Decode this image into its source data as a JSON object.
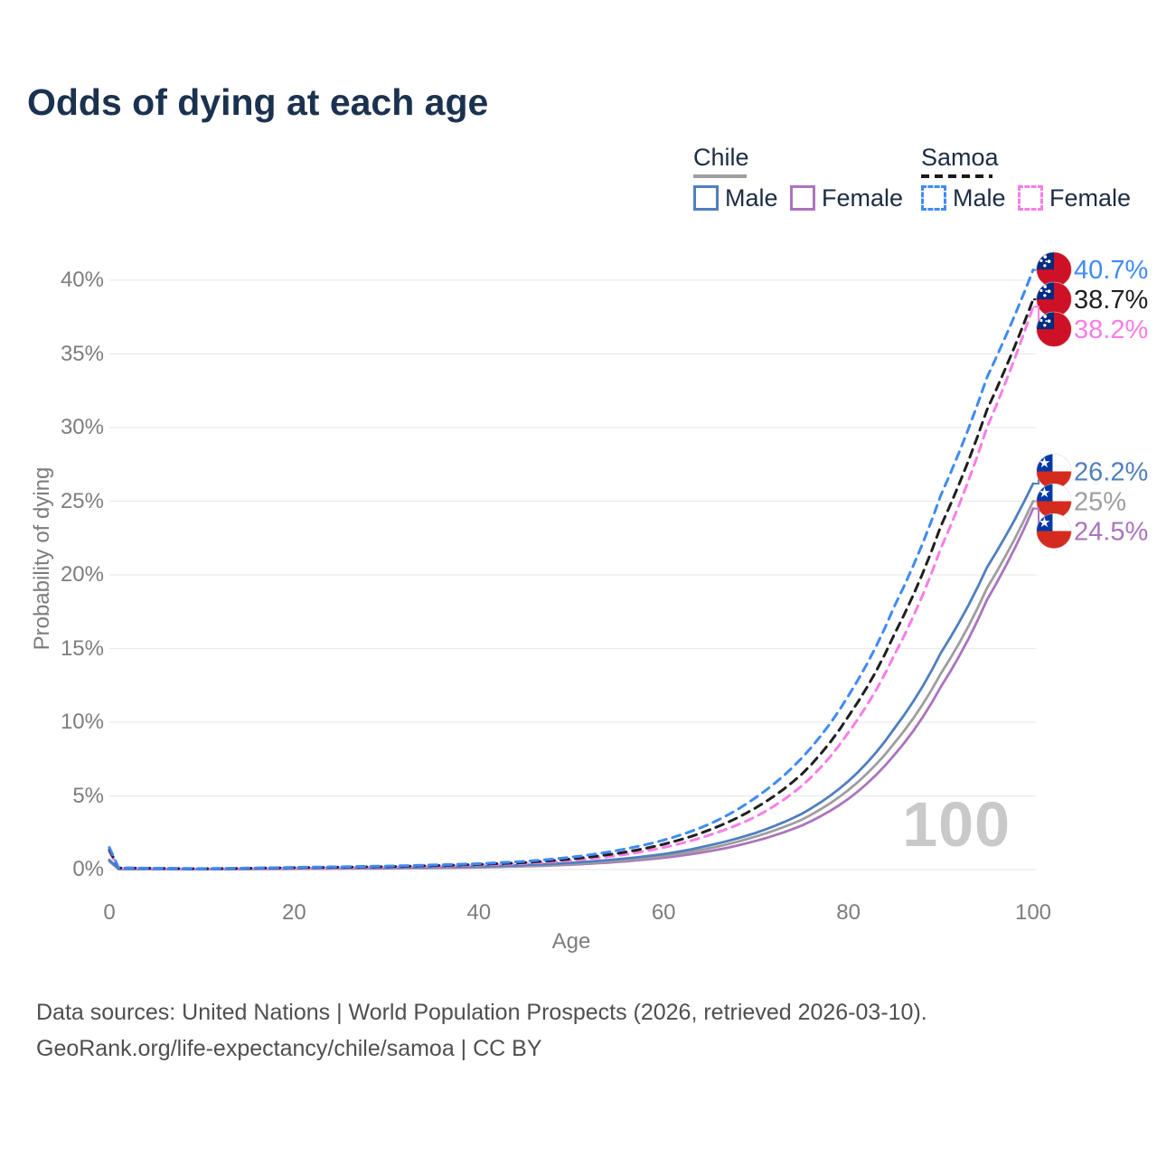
{
  "page": {
    "title": "Odds of dying at each age"
  },
  "legend": {
    "groups": [
      {
        "label": "Chile",
        "underline_color": "#9e9e9e",
        "underline_dash": false,
        "items": [
          {
            "label": "Male",
            "color": "#4f7fbe",
            "dash": false
          },
          {
            "label": "Female",
            "color": "#ab74bd",
            "dash": false
          }
        ]
      },
      {
        "label": "Samoa",
        "underline_color": "#1a1a1a",
        "underline_dash": true,
        "items": [
          {
            "label": "Male",
            "color": "#3f8af5",
            "dash": true
          },
          {
            "label": "Female",
            "color": "#fa7de7",
            "dash": true
          }
        ]
      }
    ]
  },
  "chart_data": {
    "type": "line",
    "title": "Odds of dying at each age",
    "xlabel": "Age",
    "ylabel": "Probability of dying",
    "xlim": [
      0,
      100
    ],
    "ylim": [
      0,
      42
    ],
    "grid": "horizontal",
    "legend_position": "top-right",
    "watermark": "100",
    "x_ticks": [
      {
        "label": "0",
        "v": 0
      },
      {
        "label": "20",
        "v": 20
      },
      {
        "label": "40",
        "v": 40
      },
      {
        "label": "60",
        "v": 60
      },
      {
        "label": "80",
        "v": 80
      },
      {
        "label": "100",
        "v": 100
      }
    ],
    "y_ticks": [
      {
        "label": "0%",
        "v": 0
      },
      {
        "label": "5%",
        "v": 5
      },
      {
        "label": "10%",
        "v": 10
      },
      {
        "label": "15%",
        "v": 15
      },
      {
        "label": "20%",
        "v": 20
      },
      {
        "label": "25%",
        "v": 25
      },
      {
        "label": "30%",
        "v": 30
      },
      {
        "label": "35%",
        "v": 35
      },
      {
        "label": "40%",
        "v": 40
      }
    ],
    "series": [
      {
        "id": "chile-female",
        "country": "Chile",
        "sex": "Female",
        "color": "#ab74bd",
        "dash": false,
        "end_label": "24.5%",
        "flag": "chile",
        "points": [
          [
            0,
            0.55
          ],
          [
            1,
            0.04
          ],
          [
            10,
            0.02
          ],
          [
            20,
            0.05
          ],
          [
            30,
            0.08
          ],
          [
            40,
            0.15
          ],
          [
            45,
            0.22
          ],
          [
            50,
            0.33
          ],
          [
            55,
            0.52
          ],
          [
            60,
            0.8
          ],
          [
            65,
            1.25
          ],
          [
            70,
            1.95
          ],
          [
            75,
            3.0
          ],
          [
            80,
            4.8
          ],
          [
            85,
            7.8
          ],
          [
            90,
            12.4
          ],
          [
            95,
            18.3
          ],
          [
            100,
            24.5
          ]
        ]
      },
      {
        "id": "chile-both",
        "country": "Chile",
        "sex": "Both sexes",
        "color": "#9e9e9e",
        "dash": false,
        "end_label": "25%",
        "flag": "chile",
        "points": [
          [
            0,
            0.6
          ],
          [
            1,
            0.045
          ],
          [
            10,
            0.025
          ],
          [
            20,
            0.07
          ],
          [
            30,
            0.1
          ],
          [
            40,
            0.18
          ],
          [
            45,
            0.26
          ],
          [
            50,
            0.39
          ],
          [
            55,
            0.6
          ],
          [
            60,
            0.92
          ],
          [
            65,
            1.45
          ],
          [
            70,
            2.25
          ],
          [
            75,
            3.4
          ],
          [
            80,
            5.4
          ],
          [
            85,
            8.6
          ],
          [
            90,
            13.3
          ],
          [
            95,
            19.1
          ],
          [
            100,
            25.0
          ]
        ]
      },
      {
        "id": "chile-male",
        "country": "Chile",
        "sex": "Male",
        "color": "#4f7fbe",
        "dash": false,
        "end_label": "26.2%",
        "flag": "chile",
        "points": [
          [
            0,
            0.65
          ],
          [
            1,
            0.05
          ],
          [
            10,
            0.03
          ],
          [
            20,
            0.09
          ],
          [
            30,
            0.13
          ],
          [
            40,
            0.22
          ],
          [
            45,
            0.31
          ],
          [
            50,
            0.46
          ],
          [
            55,
            0.7
          ],
          [
            60,
            1.05
          ],
          [
            65,
            1.65
          ],
          [
            70,
            2.5
          ],
          [
            75,
            3.8
          ],
          [
            80,
            6.0
          ],
          [
            85,
            9.6
          ],
          [
            90,
            14.7
          ],
          [
            95,
            20.5
          ],
          [
            100,
            26.2
          ]
        ]
      },
      {
        "id": "samoa-female",
        "country": "Samoa",
        "sex": "Female",
        "color": "#fa7de7",
        "dash": true,
        "end_label": "38.2%",
        "flag": "samoa",
        "points": [
          [
            0,
            1.2
          ],
          [
            1,
            0.1
          ],
          [
            10,
            0.05
          ],
          [
            20,
            0.1
          ],
          [
            30,
            0.17
          ],
          [
            40,
            0.3
          ],
          [
            45,
            0.42
          ],
          [
            50,
            0.62
          ],
          [
            55,
            0.95
          ],
          [
            60,
            1.5
          ],
          [
            65,
            2.35
          ],
          [
            70,
            3.6
          ],
          [
            75,
            5.7
          ],
          [
            80,
            9.3
          ],
          [
            85,
            14.6
          ],
          [
            90,
            21.8
          ],
          [
            95,
            30.0
          ],
          [
            100,
            38.2
          ]
        ]
      },
      {
        "id": "samoa-both",
        "country": "Samoa",
        "sex": "Both sexes",
        "color": "#1f1f1f",
        "dash": true,
        "end_label": "38.7%",
        "flag": "samoa",
        "points": [
          [
            0,
            1.35
          ],
          [
            1,
            0.11
          ],
          [
            10,
            0.06
          ],
          [
            20,
            0.13
          ],
          [
            30,
            0.2
          ],
          [
            40,
            0.35
          ],
          [
            45,
            0.48
          ],
          [
            50,
            0.72
          ],
          [
            55,
            1.1
          ],
          [
            60,
            1.72
          ],
          [
            65,
            2.7
          ],
          [
            70,
            4.2
          ],
          [
            75,
            6.5
          ],
          [
            80,
            10.4
          ],
          [
            85,
            16.0
          ],
          [
            90,
            23.3
          ],
          [
            95,
            31.2
          ],
          [
            100,
            38.7
          ]
        ]
      },
      {
        "id": "samoa-male",
        "country": "Samoa",
        "sex": "Male",
        "color": "#3f8af5",
        "dash": true,
        "end_label": "40.7%",
        "flag": "samoa",
        "points": [
          [
            0,
            1.5
          ],
          [
            1,
            0.12
          ],
          [
            10,
            0.07
          ],
          [
            20,
            0.15
          ],
          [
            30,
            0.24
          ],
          [
            40,
            0.4
          ],
          [
            45,
            0.56
          ],
          [
            50,
            0.84
          ],
          [
            55,
            1.3
          ],
          [
            60,
            2.0
          ],
          [
            65,
            3.1
          ],
          [
            70,
            4.9
          ],
          [
            75,
            7.6
          ],
          [
            80,
            11.8
          ],
          [
            85,
            17.9
          ],
          [
            90,
            25.4
          ],
          [
            95,
            33.4
          ],
          [
            100,
            40.7
          ]
        ]
      }
    ]
  },
  "footer": {
    "line1": "Data sources: United Nations | World Population Prospects (2026, retrieved 2026-03-10).",
    "line2": "GeoRank.org/life-expectancy/chile/samoa | CC BY"
  }
}
